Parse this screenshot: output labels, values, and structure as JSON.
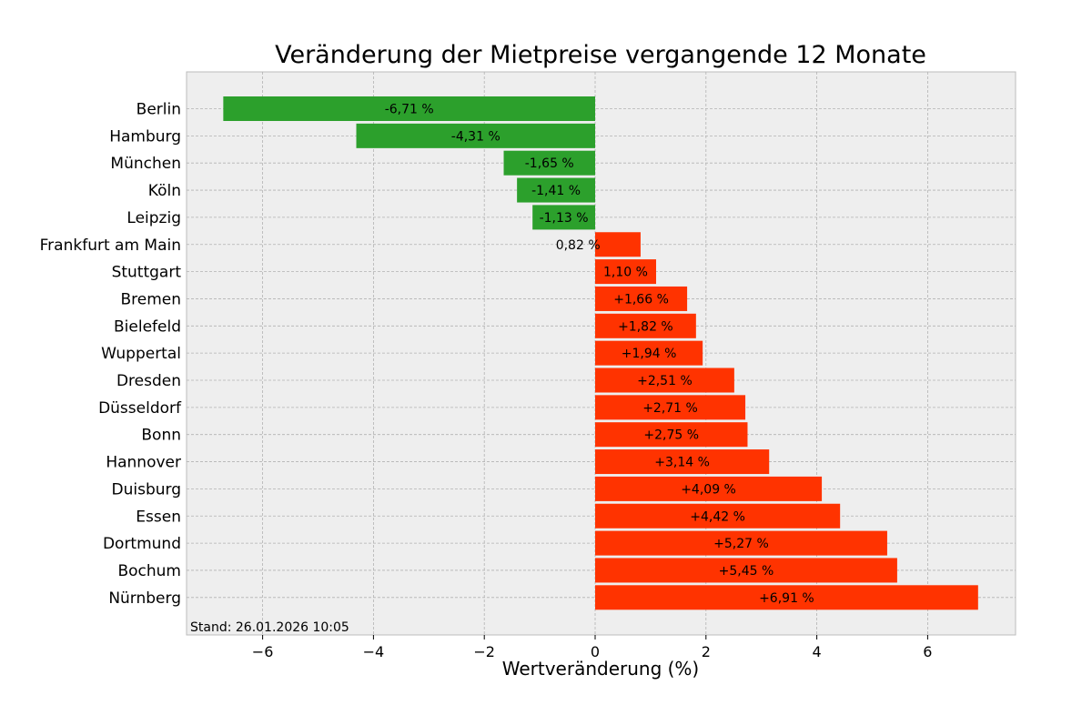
{
  "chart_data": {
    "type": "bar",
    "orientation": "horizontal",
    "title": "Veränderung der Mietpreise vergangende 12 Monate",
    "xlabel": "Wertveränderung (%)",
    "ylabel": "",
    "xlim": [
      -7.4,
      7.6
    ],
    "xticks": [
      -6,
      -4,
      -2,
      0,
      2,
      4,
      6
    ],
    "xtick_labels": [
      "−6",
      "−4",
      "−2",
      "0",
      "2",
      "4",
      "6"
    ],
    "grid": true,
    "categories": [
      "Berlin",
      "Hamburg",
      "München",
      "Köln",
      "Leipzig",
      "Frankfurt am Main",
      "Stuttgart",
      "Bremen",
      "Bielefeld",
      "Wuppertal",
      "Dresden",
      "Düsseldorf",
      "Bonn",
      "Hannover",
      "Duisburg",
      "Essen",
      "Dortmund",
      "Bochum",
      "Nürnberg"
    ],
    "values": [
      -6.71,
      -4.31,
      -1.65,
      -1.41,
      -1.13,
      0.82,
      1.1,
      1.66,
      1.82,
      1.94,
      2.51,
      2.71,
      2.75,
      3.14,
      4.09,
      4.42,
      5.27,
      5.45,
      6.91
    ],
    "data_labels": [
      "-6,71 %",
      "-4,31 %",
      "-1,65 %",
      "-1,41 %",
      "-1,13 %",
      "0,82 %",
      "1,10 %",
      "+1,66 %",
      "+1,82 %",
      "+1,94 %",
      "+2,51 %",
      "+2,71 %",
      "+2,75 %",
      "+3,14 %",
      "+4,09 %",
      "+4,42 %",
      "+5,27 %",
      "+5,45 %",
      "+6,91 %"
    ],
    "colors": {
      "negative": "#2ca02c",
      "positive": "#ff3300",
      "background": "#eeeeee"
    },
    "annotation": "Stand: 26.01.2026 10:05"
  }
}
